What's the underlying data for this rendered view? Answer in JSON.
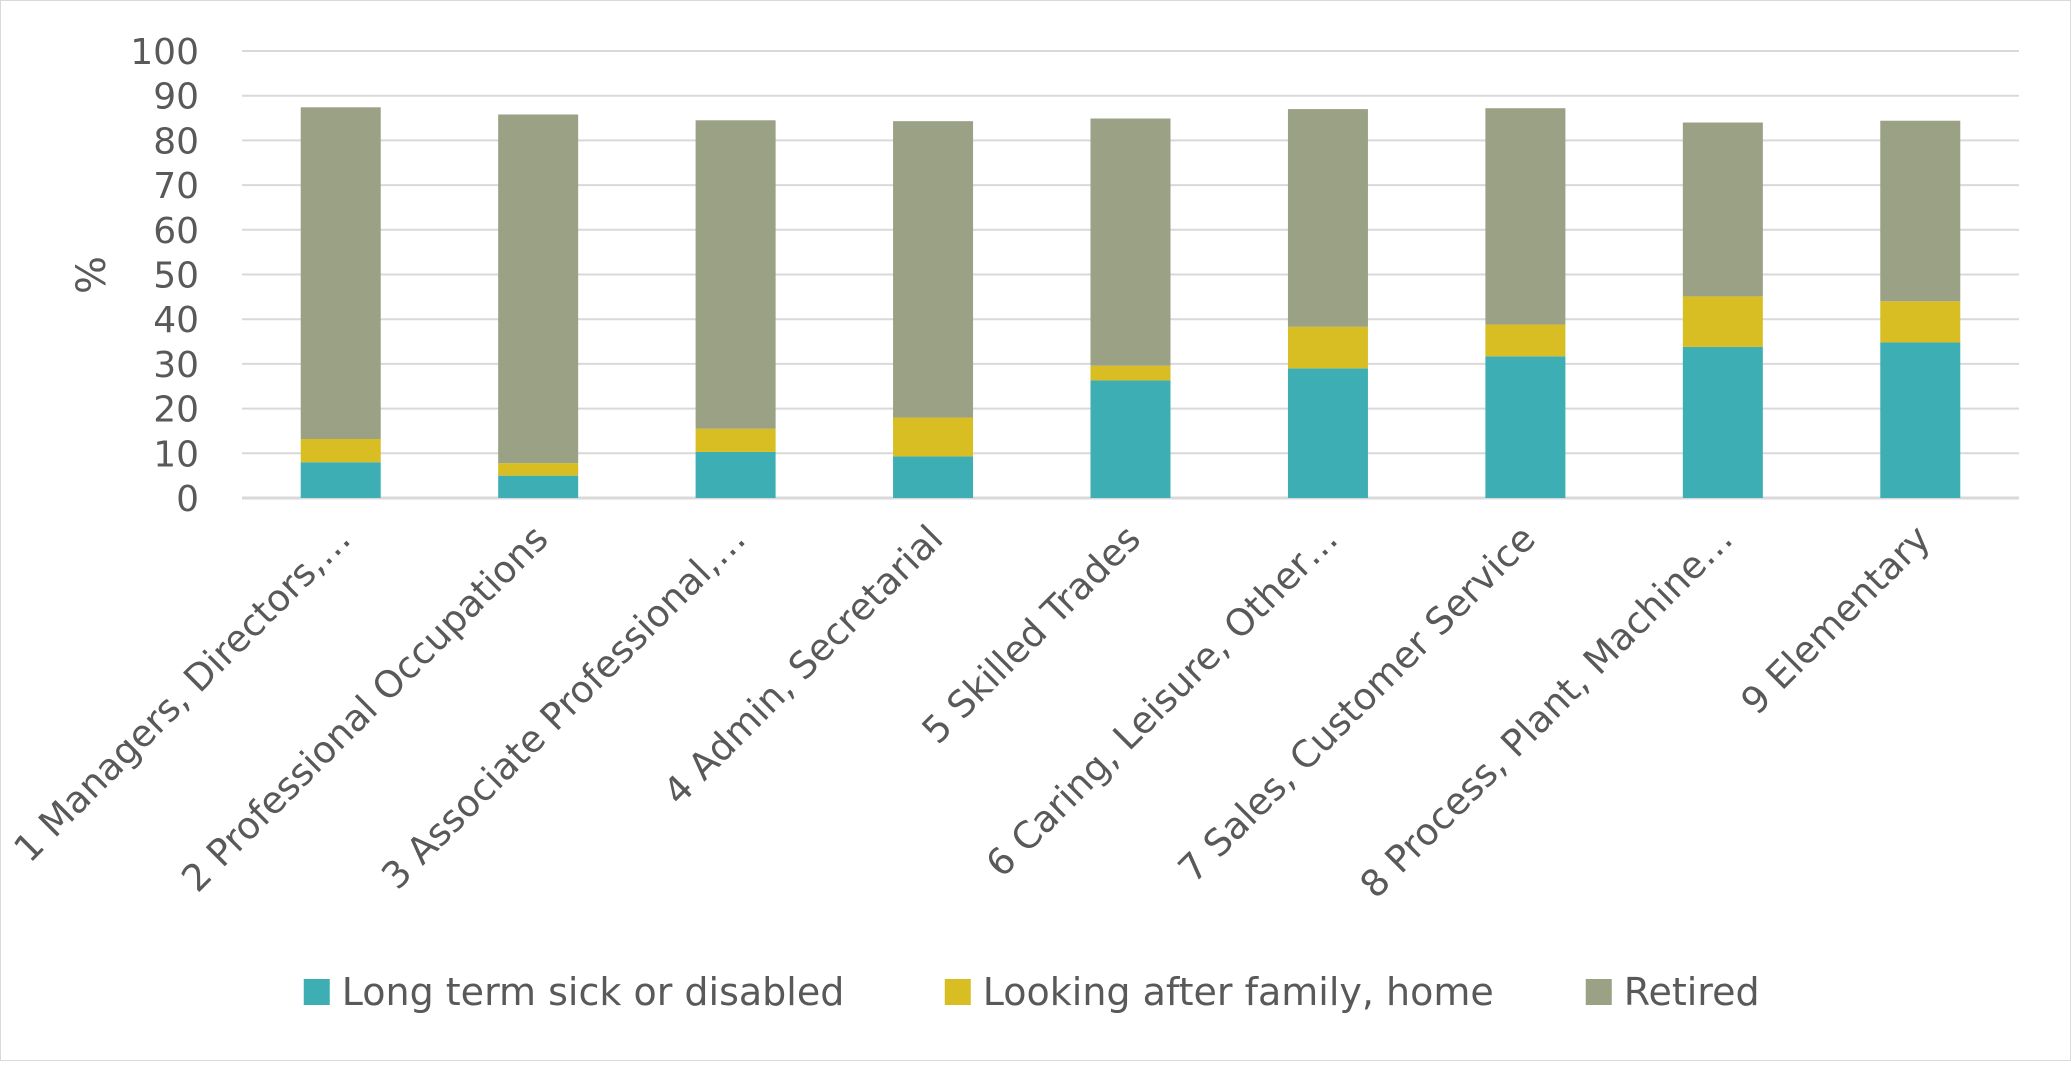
{
  "chart_data": {
    "type": "bar",
    "stacked": true,
    "title": "",
    "xlabel": "",
    "ylabel": "%",
    "ylim": [
      0,
      100
    ],
    "yticks": [
      0,
      10,
      20,
      30,
      40,
      50,
      60,
      70,
      80,
      90,
      100
    ],
    "grid": true,
    "legend_position": "bottom",
    "categories": [
      "1  Managers, Directors,…",
      "2  Professional Occupations",
      "3  Associate Professional,…",
      "4  Admin, Secretarial",
      "5  Skilled Trades",
      "6  Caring, Leisure, Other…",
      "7  Sales, Customer Service",
      "8  Process, Plant, Machine…",
      "9  Elementary"
    ],
    "series": [
      {
        "name": "Long term sick or disabled",
        "color": "#3eaeb5",
        "values": [
          8,
          5,
          10.3,
          9.3,
          26.3,
          29,
          31.7,
          33.8,
          34.8
        ]
      },
      {
        "name": "Looking after family, home",
        "color": "#d8bd23",
        "values": [
          5.2,
          2.8,
          5.2,
          8.7,
          3.3,
          9.3,
          7.1,
          11.3,
          9.2
        ]
      },
      {
        "name": "Retired",
        "color": "#9aa184",
        "values": [
          74.2,
          78,
          69,
          66.3,
          55.3,
          48.7,
          48.4,
          38.9,
          40.4
        ]
      }
    ]
  }
}
